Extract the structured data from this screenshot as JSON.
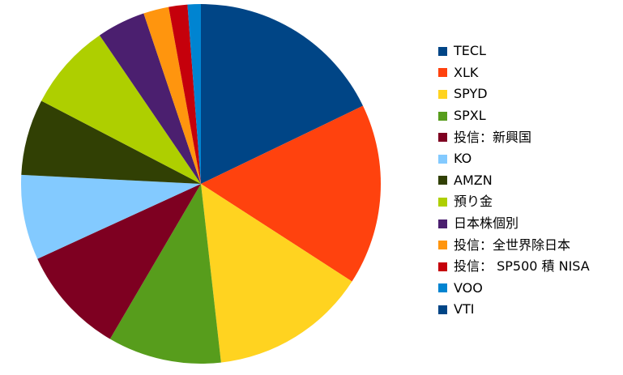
{
  "chart_data": {
    "type": "pie",
    "title": "",
    "legend_position": "right",
    "start": "top, clockwise",
    "series": [
      {
        "name": "TECL",
        "value": 18.0,
        "color": "#004586"
      },
      {
        "name": "XLK",
        "value": 16.4,
        "color": "#ff420e"
      },
      {
        "name": "SPYD",
        "value": 14.2,
        "color": "#ffd320"
      },
      {
        "name": "SPXL",
        "value": 10.3,
        "color": "#579d1c"
      },
      {
        "name": "投信：新興国",
        "value": 9.8,
        "color": "#7e0021"
      },
      {
        "name": "KO",
        "value": 7.7,
        "color": "#83caff"
      },
      {
        "name": "AMZN",
        "value": 6.9,
        "color": "#314004"
      },
      {
        "name": "預り金",
        "value": 7.9,
        "color": "#aecf00"
      },
      {
        "name": "日本株個別",
        "value": 4.4,
        "color": "#4b1f6f"
      },
      {
        "name": "投信：全世界除日本",
        "value": 2.3,
        "color": "#ff950e"
      },
      {
        "name": "投信： SP500  積 NISA",
        "value": 1.7,
        "color": "#c5000b"
      },
      {
        "name": "VOO",
        "value": 1.2,
        "color": "#0084d1"
      },
      {
        "name": "VTI",
        "value": 0.0,
        "color": "#004586"
      }
    ]
  }
}
